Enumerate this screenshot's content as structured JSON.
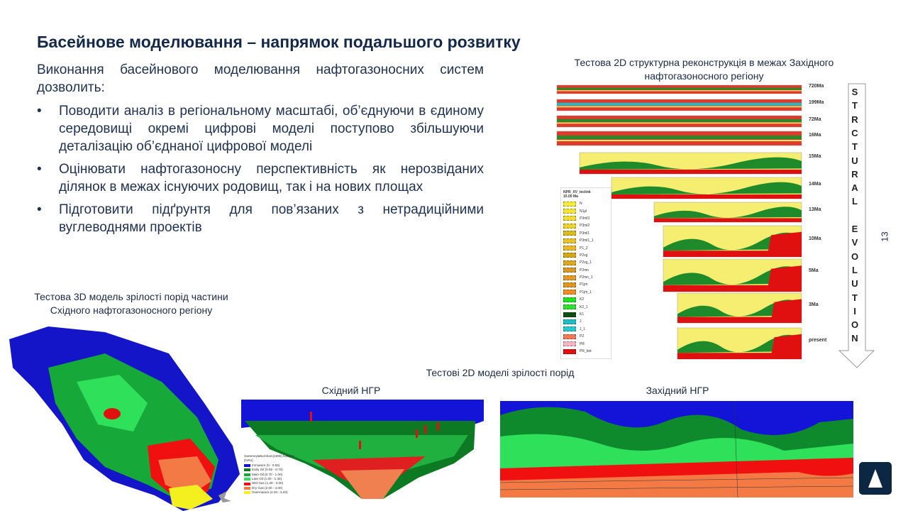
{
  "title": "Басейнове моделювання – напрямок подальшого розвитку",
  "intro": "Виконання басейнового моделювання нафтогазоносних систем дозволить:",
  "bullets": [
    "Поводити аналіз в регіональному масштабі, об’єднуючи в єдиному середовищі окремі цифрові моделі поступово збільшуючи деталізацію об’єднаної цифрової моделі",
    "Оцінювати нафтогазоносну перспективність як нерозвіданих ділянок в межах існуючих родовищ, так і на нових площах",
    "Підготовити підґрунтя для пов’язаних з нетрадиційними вуглеводнями проектів"
  ],
  "reconstruction": {
    "caption": "Тестова 2D структурна реконструкція в межах Західного нафтогазоносного регіону",
    "time_labels": [
      "720Ma",
      "199Ma",
      "72Ma",
      "16Ma",
      "15Ma",
      "14Ma",
      "13Ma",
      "10Ma",
      "5Ma",
      "3Ma",
      "present"
    ],
    "legend": {
      "title": "NPR_XV_teclink",
      "age": "10.00 Ma",
      "items": [
        {
          "label": "N",
          "color": "#f6ea3a"
        },
        {
          "label": "N1pl",
          "color": "#f3e43a"
        },
        {
          "label": "P3ml3",
          "color": "#efdc35"
        },
        {
          "label": "P3ml2",
          "color": "#ead230"
        },
        {
          "label": "P3ml1",
          "color": "#d9bb1f"
        },
        {
          "label": "P3ml1_1",
          "color": "#e8c22e"
        },
        {
          "label": "P1_2",
          "color": "#e8b82a"
        },
        {
          "label": "P2vg",
          "color": "#d2a818"
        },
        {
          "label": "P2vg_1",
          "color": "#dca822"
        },
        {
          "label": "P2mn",
          "color": "#d59a2a"
        },
        {
          "label": "P2mn_1",
          "color": "#e39a2b"
        },
        {
          "label": "P1jm",
          "color": "#e0961e"
        },
        {
          "label": "P1jm_1",
          "color": "#ee8e22"
        },
        {
          "label": "K2",
          "color": "#22e022"
        },
        {
          "label": "K2_1",
          "color": "#30e030"
        },
        {
          "label": "K1",
          "color": "#0e4d10"
        },
        {
          "label": "J",
          "color": "#20bcc4"
        },
        {
          "label": "J_1",
          "color": "#2ac8cc"
        },
        {
          "label": "PZ",
          "color": "#f07a55"
        },
        {
          "label": "PR",
          "color": "#f4b6c2"
        },
        {
          "label": "PR_bot",
          "color": "#e01010"
        }
      ]
    }
  },
  "arrow_letters": [
    "S",
    "T",
    "R",
    "C",
    "T",
    "U",
    "R",
    "A",
    "L",
    "",
    "E",
    "V",
    "O",
    "L",
    "U",
    "T",
    "I",
    "O",
    "N"
  ],
  "page_number": "13",
  "model3d_caption": "Тестова 3D модель зрілості порід частини Східного нафтогазоносного регіону",
  "models2d_caption": "Тестові 2D моделі зрілості порід",
  "east": {
    "title": "Східний НГР",
    "legend_title": "Sweeney&Burnham(1990) EasyRo [%Ro]",
    "legend": [
      {
        "label": "Immature (0 - 0.55)",
        "color": "#1010e0"
      },
      {
        "label": "Early Oil (0.55 - 0.70)",
        "color": "#0a7a1e"
      },
      {
        "label": "Main Oil (0.70 - 1.00)",
        "color": "#17a83a"
      },
      {
        "label": "Late Oil (1.00 - 1.30)",
        "color": "#2ee05a"
      },
      {
        "label": "Wet Gas (1.30 - 2.00)",
        "color": "#f01010"
      },
      {
        "label": "Dry Gas (2.00 - 4.00)",
        "color": "#f47a45"
      },
      {
        "label": "Overmature (4.00 - 5.00)",
        "color": "#f4f020"
      }
    ]
  },
  "west": {
    "title": "Західний НГР"
  },
  "colors": {
    "navy": "#0c2743",
    "immature": "#1010e0",
    "oil": "#17a83a",
    "gas": "#f01010",
    "drygas": "#f47a45",
    "over": "#f4f020"
  }
}
